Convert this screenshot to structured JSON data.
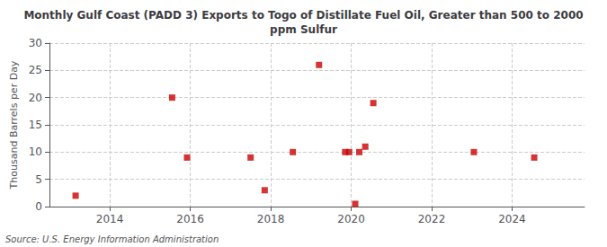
{
  "chart_data": {
    "type": "scatter",
    "title": "Monthly Gulf Coast (PADD 3) Exports to Togo of Distillate Fuel Oil, Greater than 500 to 2000\nppm Sulfur",
    "ylabel": "Thousand Barrels per Day",
    "annotation": "Source: U.S. Energy Information Administration",
    "x": [
      2013.15,
      2015.55,
      2015.92,
      2017.5,
      2017.85,
      2018.55,
      2019.2,
      2019.85,
      2019.95,
      2020.1,
      2020.2,
      2020.35,
      2020.55,
      2023.05,
      2024.55
    ],
    "values": [
      2,
      20,
      9,
      9,
      3,
      10,
      26,
      10,
      10,
      0.5,
      10,
      11,
      19,
      10,
      9
    ],
    "color": "#cc0000",
    "marker": "square",
    "xlim": [
      2012.5,
      2025.8
    ],
    "xticks": [
      2014,
      2016,
      2018,
      2020,
      2022,
      2024
    ],
    "ylim": [
      0,
      30
    ],
    "yticks": [
      0,
      5,
      10,
      15,
      20,
      25,
      30
    ],
    "grid": true
  }
}
